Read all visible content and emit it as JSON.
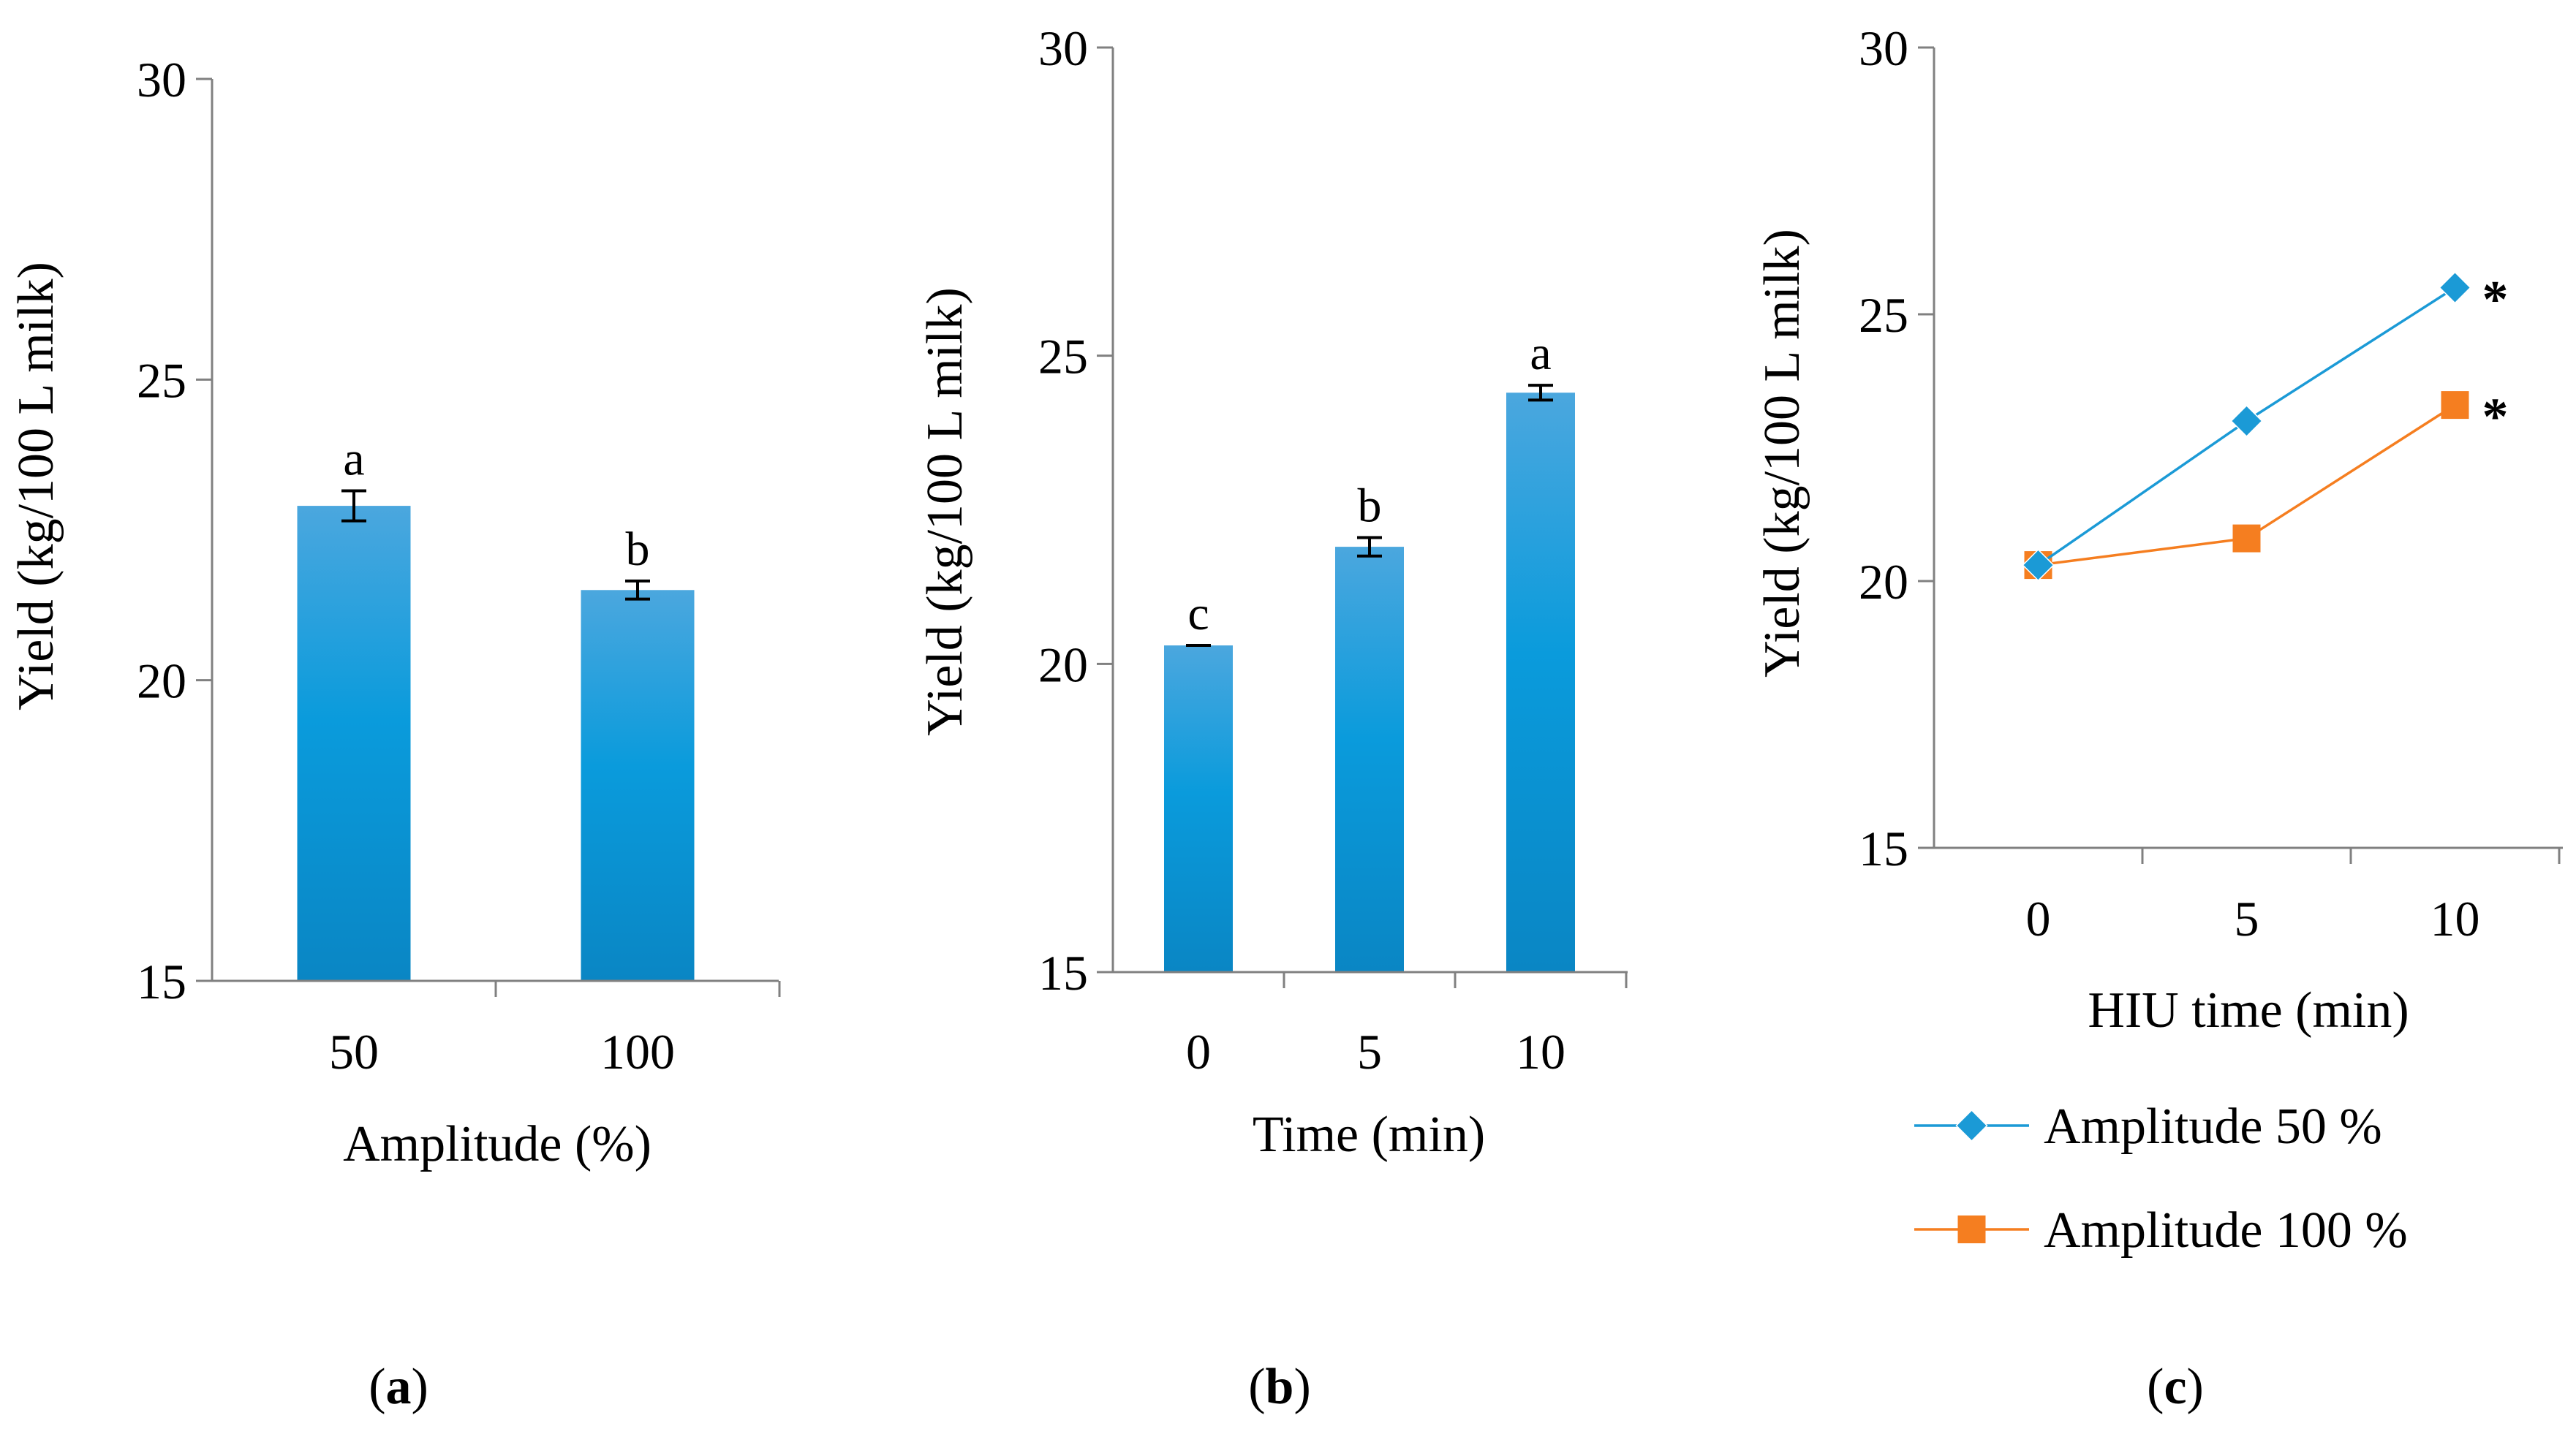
{
  "figure": {
    "panels": [
      "a",
      "b",
      "c"
    ]
  },
  "chart_data": [
    {
      "id": "a",
      "type": "bar",
      "panel_label": "a",
      "title": "",
      "xlabel": "Amplitude (%)",
      "ylabel": "Yield (kg/100 L milk)",
      "ylim": [
        15,
        30
      ],
      "yticks": [
        "15",
        "20",
        "25",
        "30"
      ],
      "categories": [
        "50",
        "100"
      ],
      "values": [
        22.9,
        21.5
      ],
      "errors": [
        0.25,
        0.15
      ],
      "letters": [
        "a",
        "b"
      ],
      "color": "#0E9CD8",
      "grid": false
    },
    {
      "id": "b",
      "type": "bar",
      "panel_label": "b",
      "title": "",
      "xlabel": "Time (min)",
      "ylabel": "Yield (kg/100 L milk)",
      "ylim": [
        15,
        30
      ],
      "yticks": [
        "15",
        "20",
        "25",
        "30"
      ],
      "categories": [
        "0",
        "5",
        "10"
      ],
      "values": [
        20.3,
        21.9,
        24.4
      ],
      "errors": [
        0.0,
        0.15,
        0.12
      ],
      "letters": [
        "c",
        "b",
        "a"
      ],
      "color": "#0E9CD8",
      "grid": false
    },
    {
      "id": "c",
      "type": "line",
      "panel_label": "c",
      "title": "",
      "xlabel": "HIU time (min)",
      "ylabel": "Yield (kg/100 L milk)",
      "ylim": [
        15,
        30
      ],
      "yticks": [
        "15",
        "20",
        "25",
        "30"
      ],
      "categories": [
        "0",
        "5",
        "10"
      ],
      "series": [
        {
          "name": "Amplitude 50 %",
          "values": [
            20.3,
            23.0,
            25.5
          ],
          "color": "#1B9AD6",
          "marker": "diamond",
          "annotation": "*"
        },
        {
          "name": "Amplitude 100 %",
          "values": [
            20.3,
            20.8,
            23.3
          ],
          "color": "#F57E20",
          "marker": "square",
          "annotation": "*"
        }
      ],
      "legend_position": "bottom",
      "grid": false
    }
  ]
}
